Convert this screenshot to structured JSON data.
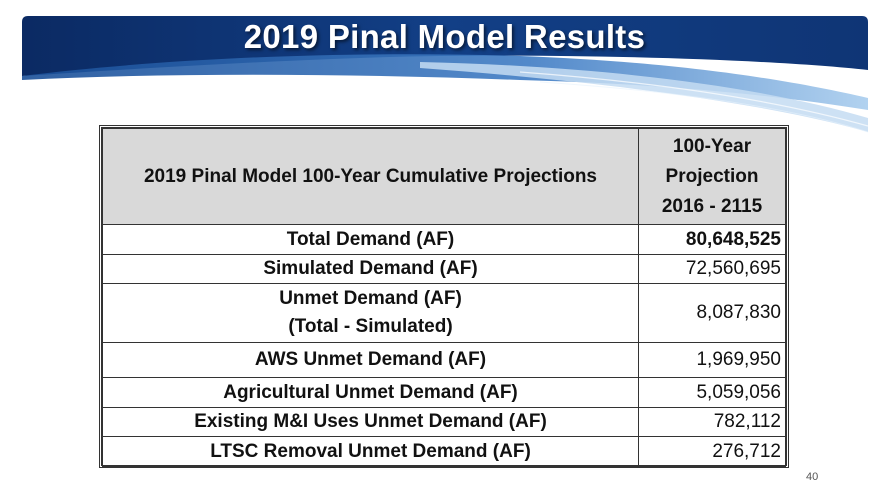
{
  "slide": {
    "title": "2019 Pinal Model Results",
    "page_number": "40"
  },
  "table": {
    "header": {
      "description": "2019 Pinal Model 100-Year Cumulative Projections",
      "projection_line1": "100-Year",
      "projection_line2": "Projection",
      "projection_line3": "2016 - 2115"
    },
    "rows": [
      {
        "label": "Total Demand (AF)",
        "value": "80,648,525"
      },
      {
        "label": "Simulated Demand (AF)",
        "value": "72,560,695"
      },
      {
        "label_line1": "Unmet Demand (AF)",
        "label_line2": "(Total - Simulated)",
        "value": "8,087,830"
      },
      {
        "label": "AWS Unmet Demand (AF)",
        "value": "1,969,950"
      },
      {
        "label": "Agricultural Unmet Demand (AF)",
        "value": "5,059,056"
      },
      {
        "label": "Existing M&I Uses Unmet Demand (AF)",
        "value": "782,112"
      },
      {
        "label": "LTSC Removal Unmet Demand (AF)",
        "value": "276,712"
      }
    ]
  },
  "colors": {
    "banner_dark": "#0d2f6e",
    "banner_mid": "#1f5ba8",
    "banner_light": "#9cc4e8",
    "header_fill": "#d9d9d9"
  }
}
